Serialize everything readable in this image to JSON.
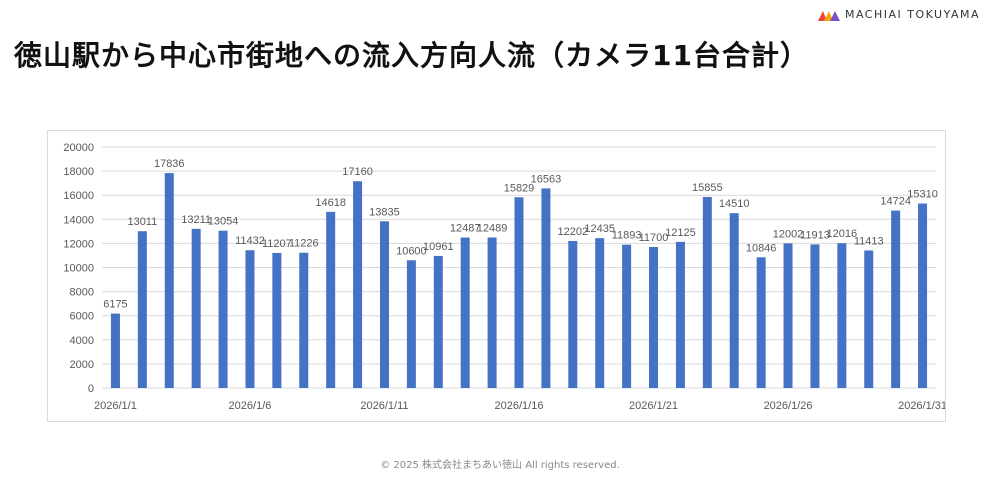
{
  "logo": {
    "text": "MACHIAI TOKUYAMA"
  },
  "title": "徳山駅から中心市街地への流入方向人流（カメラ11台合計）",
  "footer": "© 2025 株式会社まちあい徳山  All rights reserved.",
  "colors": {
    "bar": "#4472C4",
    "grid": "#d9d9d9",
    "text": "#595959"
  },
  "chart_data": {
    "type": "bar",
    "title": "",
    "xlabel": "",
    "ylabel": "",
    "ylim": [
      0,
      20000
    ],
    "yticks": [
      0,
      2000,
      4000,
      6000,
      8000,
      10000,
      12000,
      14000,
      16000,
      18000,
      20000
    ],
    "grid": true,
    "categories": [
      "2026/1/1",
      "2026/1/2",
      "2026/1/3",
      "2026/1/4",
      "2026/1/5",
      "2026/1/6",
      "2026/1/7",
      "2026/1/8",
      "2026/1/9",
      "2026/1/10",
      "2026/1/11",
      "2026/1/12",
      "2026/1/13",
      "2026/1/14",
      "2026/1/15",
      "2026/1/16",
      "2026/1/17",
      "2026/1/18",
      "2026/1/19",
      "2026/1/20",
      "2026/1/21",
      "2026/1/22",
      "2026/1/23",
      "2026/1/24",
      "2026/1/25",
      "2026/1/26",
      "2026/1/27",
      "2026/1/28",
      "2026/1/29",
      "2026/1/30",
      "2026/1/31"
    ],
    "xtick_labels": [
      "2026/1/1",
      "2026/1/6",
      "2026/1/11",
      "2026/1/16",
      "2026/1/21",
      "2026/1/26",
      "2026/1/31"
    ],
    "values": [
      6175,
      13011,
      17836,
      13211,
      13054,
      11432,
      11207,
      11226,
      14618,
      17160,
      13835,
      10600,
      10961,
      12487,
      12489,
      15829,
      16563,
      12202,
      12435,
      11893,
      11700,
      12125,
      15855,
      14510,
      10846,
      12002,
      11913,
      12016,
      11413,
      14724,
      15310
    ]
  }
}
